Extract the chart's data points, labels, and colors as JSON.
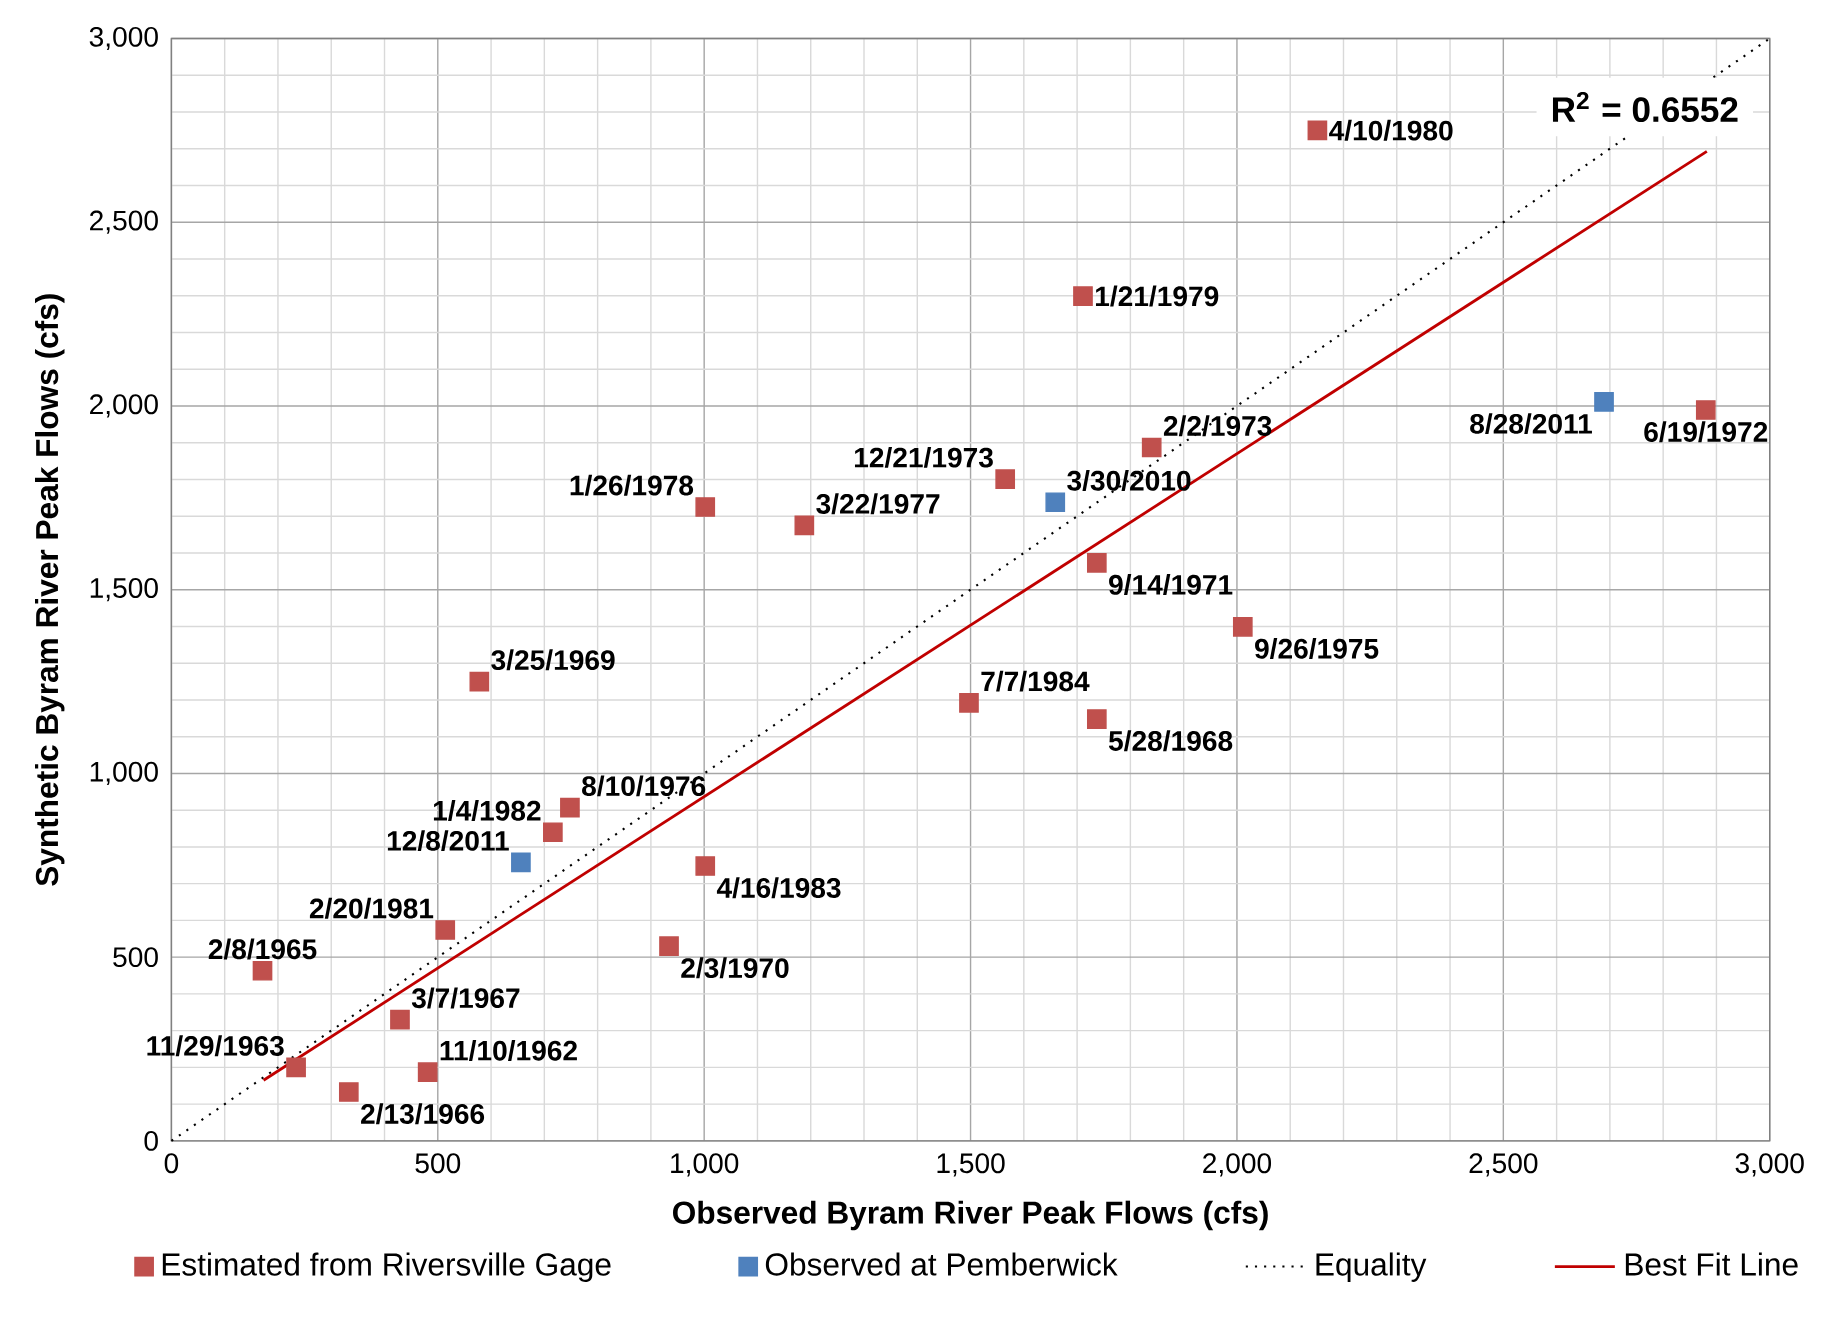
{
  "chart_data": {
    "type": "scatter",
    "xlabel": "Observed Byram River Peak Flows (cfs)",
    "ylabel": "Synthetic Byram River Peak Flows (cfs)",
    "xlim": [
      0,
      3000
    ],
    "ylim": [
      0,
      3000
    ],
    "xticks": [
      0,
      500,
      {
        "value": 1000,
        "label": "1,000"
      },
      {
        "value": 1500,
        "label": "1,500"
      },
      {
        "value": 2000,
        "label": "2,000"
      },
      {
        "value": 2500,
        "label": "2,500"
      },
      {
        "value": 3000,
        "label": "3,000"
      }
    ],
    "yticks": [
      0,
      500,
      {
        "value": 1000,
        "label": "1,000"
      },
      {
        "value": 1500,
        "label": "1,500"
      },
      {
        "value": 2000,
        "label": "2,000"
      },
      {
        "value": 2500,
        "label": "2,500"
      },
      {
        "value": 3000,
        "label": "3,000"
      }
    ],
    "grid": true,
    "legend": "bottom",
    "series": [
      {
        "name": "Estimated from Riversville Gage",
        "color": "#c0504d",
        "marker": "square",
        "x": [
          2151,
          1711,
          1840,
          2880,
          1565,
          1002,
          1188,
          1737,
          2011,
          578,
          1497,
          1737,
          748,
          716,
          1002,
          514,
          934,
          171,
          429,
          234,
          481,
          333
        ],
        "values": [
          2750,
          2299,
          1887,
          1989,
          1801,
          1725,
          1675,
          1573,
          1399,
          1250,
          1192,
          1148,
          907,
          840,
          748,
          574,
          530,
          463,
          330,
          200,
          187,
          133
        ]
      },
      {
        "name": "Observed at Pemberwick",
        "color": "#4f81bd",
        "marker": "square",
        "x": [
          2689,
          1659,
          656
        ],
        "values": [
          2011,
          1738,
          758
        ]
      },
      {
        "name": "Equality",
        "type": "line",
        "color": "#000000",
        "marker": "none",
        "line_style": "dotted",
        "x": [
          0,
          3000
        ],
        "values": [
          0,
          3000
        ]
      },
      {
        "name": "Best Fit Line",
        "type": "line",
        "color": "#c00000",
        "marker": "none",
        "line_style": "solid",
        "x": [
          173,
          2882
        ],
        "values": [
          165,
          2693
        ]
      }
    ],
    "annotations": [
      "R$^{2}$ = 0.6552",
      {
        "text": "4/10/1980",
        "x": 2151,
        "y": 2750
      },
      {
        "text": "1/21/1979",
        "x": 1711,
        "y": 2299
      },
      {
        "text": "2/2/1973",
        "x": 1840,
        "y": 1887
      },
      {
        "text": "6/19/1972",
        "x": 2880,
        "y": 1989
      },
      {
        "text": "12/21/1973",
        "x": 1565,
        "y": 1801
      },
      {
        "text": "1/26/1978",
        "x": 1002,
        "y": 1725
      },
      {
        "text": "3/22/1977",
        "x": 1188,
        "y": 1675
      },
      {
        "text": "9/14/1971",
        "x": 1737,
        "y": 1573
      },
      {
        "text": "9/26/1975",
        "x": 2011,
        "y": 1399
      },
      {
        "text": "3/25/1969",
        "x": 578,
        "y": 1250
      },
      {
        "text": "7/7/1984",
        "x": 1497,
        "y": 1192
      },
      {
        "text": "5/28/1968",
        "x": 1737,
        "y": 1148
      },
      {
        "text": "8/10/1976",
        "x": 748,
        "y": 907
      },
      {
        "text": "1/4/1982",
        "x": 716,
        "y": 840
      },
      {
        "text": "4/16/1983",
        "x": 1002,
        "y": 748
      },
      {
        "text": "2/20/1981",
        "x": 514,
        "y": 574
      },
      {
        "text": "2/3/1970",
        "x": 934,
        "y": 530
      },
      {
        "text": "2/8/1965",
        "x": 171,
        "y": 463
      },
      {
        "text": "3/7/1967",
        "x": 429,
        "y": 330
      },
      {
        "text": "11/29/1963",
        "x": 234,
        "y": 200
      },
      {
        "text": "11/10/1962",
        "x": 481,
        "y": 187
      },
      {
        "text": "2/13/1966",
        "x": 333,
        "y": 133
      },
      {
        "text": "8/28/2011",
        "x": 2689,
        "y": 2011
      },
      {
        "text": "3/30/2010",
        "x": 1659,
        "y": 1738
      },
      {
        "text": "12/8/2011",
        "x": 656,
        "y": 758
      }
    ]
  }
}
